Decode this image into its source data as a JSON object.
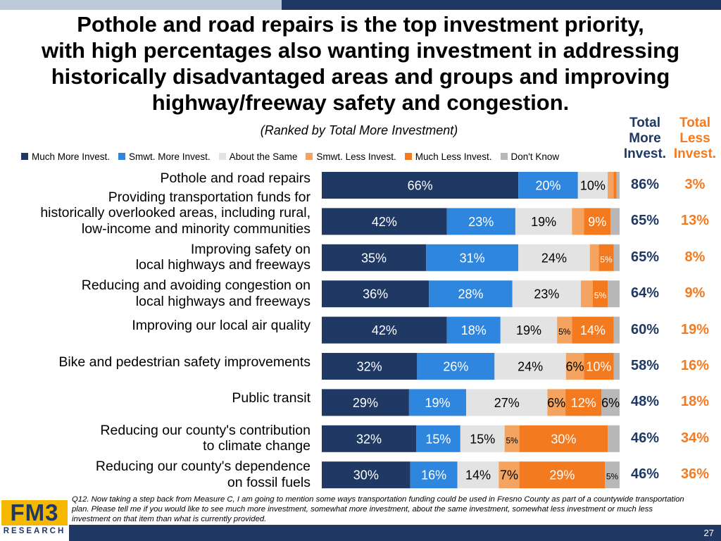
{
  "title_lines": [
    "Pothole and road repairs is the top investment priority,",
    "with high percentages also wanting investment in addressing",
    "historically disadvantaged areas and groups and improving",
    "highway/freeway safety and congestion."
  ],
  "subtitle": "(Ranked by Total More Investment)",
  "headers": {
    "more": [
      "Total",
      "More",
      "Invest."
    ],
    "less": [
      "Total",
      "Less",
      "Invest."
    ]
  },
  "footnote": "Q12. Now taking a step back from Measure C, I am going to mention some ways transportation funding could be used in Fresno County as part of a countywide transportation plan. Please tell me if you would like to see much more investment, somewhat more investment, about the same investment, somewhat less investment or much less investment on that item than what is currently provided.",
  "logo": {
    "mark": "FM3",
    "sub": "RESEARCH"
  },
  "page_number": "27",
  "colors": {
    "much_more": "#1f3864",
    "smwt_more": "#2e86de",
    "same": "#e3e3e3",
    "smwt_less": "#f4a460",
    "much_less": "#f47a1f",
    "dont_know": "#b8b8b8",
    "total_more": "#1f3864",
    "total_less": "#f47a1f"
  },
  "chart_data": {
    "type": "bar",
    "orientation": "horizontal",
    "stacked": true,
    "xlim": [
      0,
      100
    ],
    "legend_position": "top",
    "series": [
      {
        "name": "Much More Invest.",
        "values": [
          66,
          42,
          35,
          36,
          42,
          32,
          29,
          32,
          30
        ]
      },
      {
        "name": "Smwt. More Invest.",
        "values": [
          20,
          23,
          31,
          28,
          18,
          26,
          19,
          15,
          16
        ]
      },
      {
        "name": "About the Same",
        "values": [
          10,
          19,
          24,
          23,
          19,
          24,
          27,
          15,
          14
        ]
      },
      {
        "name": "Smwt. Less Invest.",
        "values": [
          2,
          4,
          3,
          4,
          5,
          6,
          6,
          5,
          7
        ]
      },
      {
        "name": "Much Less Invest.",
        "values": [
          1,
          9,
          5,
          5,
          14,
          10,
          12,
          30,
          29
        ]
      },
      {
        "name": "Don't Know",
        "values": [
          1,
          3,
          2,
          4,
          2,
          2,
          6,
          4,
          5
        ]
      }
    ],
    "value_labels": [
      [
        "66%",
        "20%",
        "10%",
        "",
        "",
        ""
      ],
      [
        "42%",
        "23%",
        "19%",
        "",
        "9%",
        ""
      ],
      [
        "35%",
        "31%",
        "24%",
        "",
        "5%",
        ""
      ],
      [
        "36%",
        "28%",
        "23%",
        "",
        "5%",
        ""
      ],
      [
        "42%",
        "18%",
        "19%",
        "5%",
        "14%",
        ""
      ],
      [
        "32%",
        "26%",
        "24%",
        "6%",
        "10%",
        ""
      ],
      [
        "29%",
        "19%",
        "27%",
        "6%",
        "12%",
        "6%"
      ],
      [
        "32%",
        "15%",
        "15%",
        "5%",
        "30%",
        ""
      ],
      [
        "30%",
        "16%",
        "14%",
        "7%",
        "29%",
        "5%"
      ]
    ],
    "categories": [
      [
        "Pothole and road repairs"
      ],
      [
        "Providing transportation funds for",
        "historically overlooked areas, including rural,",
        "low-income and minority communities"
      ],
      [
        "Improving safety on",
        "local highways and freeways"
      ],
      [
        "Reducing and avoiding congestion on",
        "local highways and freeways"
      ],
      [
        "Improving our local air quality"
      ],
      [
        "Bike and pedestrian safety improvements"
      ],
      [
        "Public transit"
      ],
      [
        "Reducing our county's contribution",
        "to climate change"
      ],
      [
        "Reducing our county's dependence",
        "on fossil fuels"
      ]
    ],
    "total_more": [
      "86%",
      "65%",
      "65%",
      "64%",
      "60%",
      "58%",
      "48%",
      "46%",
      "46%"
    ],
    "total_less": [
      "3%",
      "13%",
      "8%",
      "9%",
      "19%",
      "16%",
      "18%",
      "34%",
      "36%"
    ]
  }
}
